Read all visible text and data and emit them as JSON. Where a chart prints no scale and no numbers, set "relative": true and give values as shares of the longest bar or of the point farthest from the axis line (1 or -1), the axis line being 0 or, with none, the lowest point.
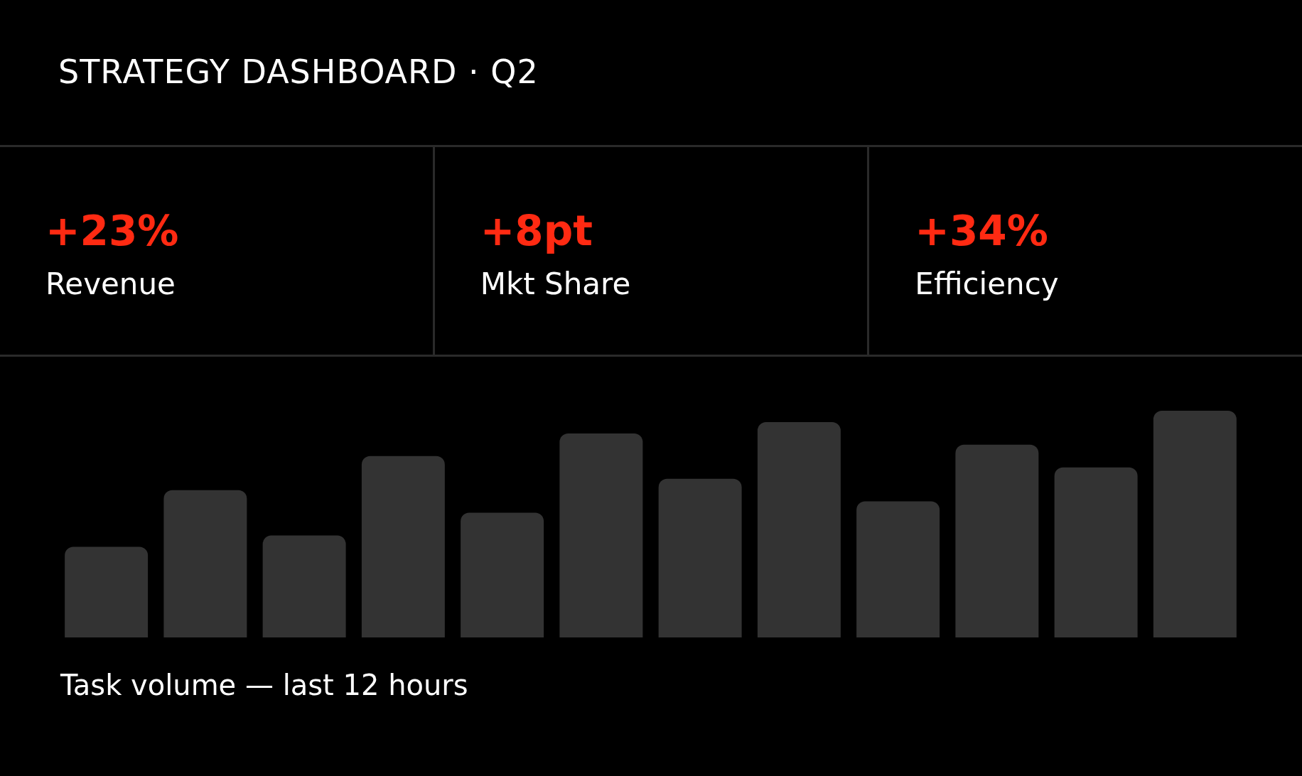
{
  "chart_data": [
    {
      "type": "other",
      "title": "STRATEGY DASHBOARD · Q2",
      "categories": [
        "Revenue",
        "Mkt Share",
        "Efficiency"
      ],
      "value_labels": [
        "+23%",
        "+8pt",
        "+34%"
      ],
      "color": "#ff2a12"
    },
    {
      "type": "bar",
      "relative": true,
      "xlabel": "Task volume — last 12 hours",
      "categories": [
        null,
        null,
        null,
        null,
        null,
        null,
        null,
        null,
        null,
        null,
        null,
        null
      ],
      "values": [
        0.4,
        0.65,
        0.45,
        0.8,
        0.55,
        0.9,
        0.7,
        0.95,
        0.6,
        0.85,
        0.75,
        1.0
      ],
      "color": "#333333",
      "grid": false
    }
  ]
}
